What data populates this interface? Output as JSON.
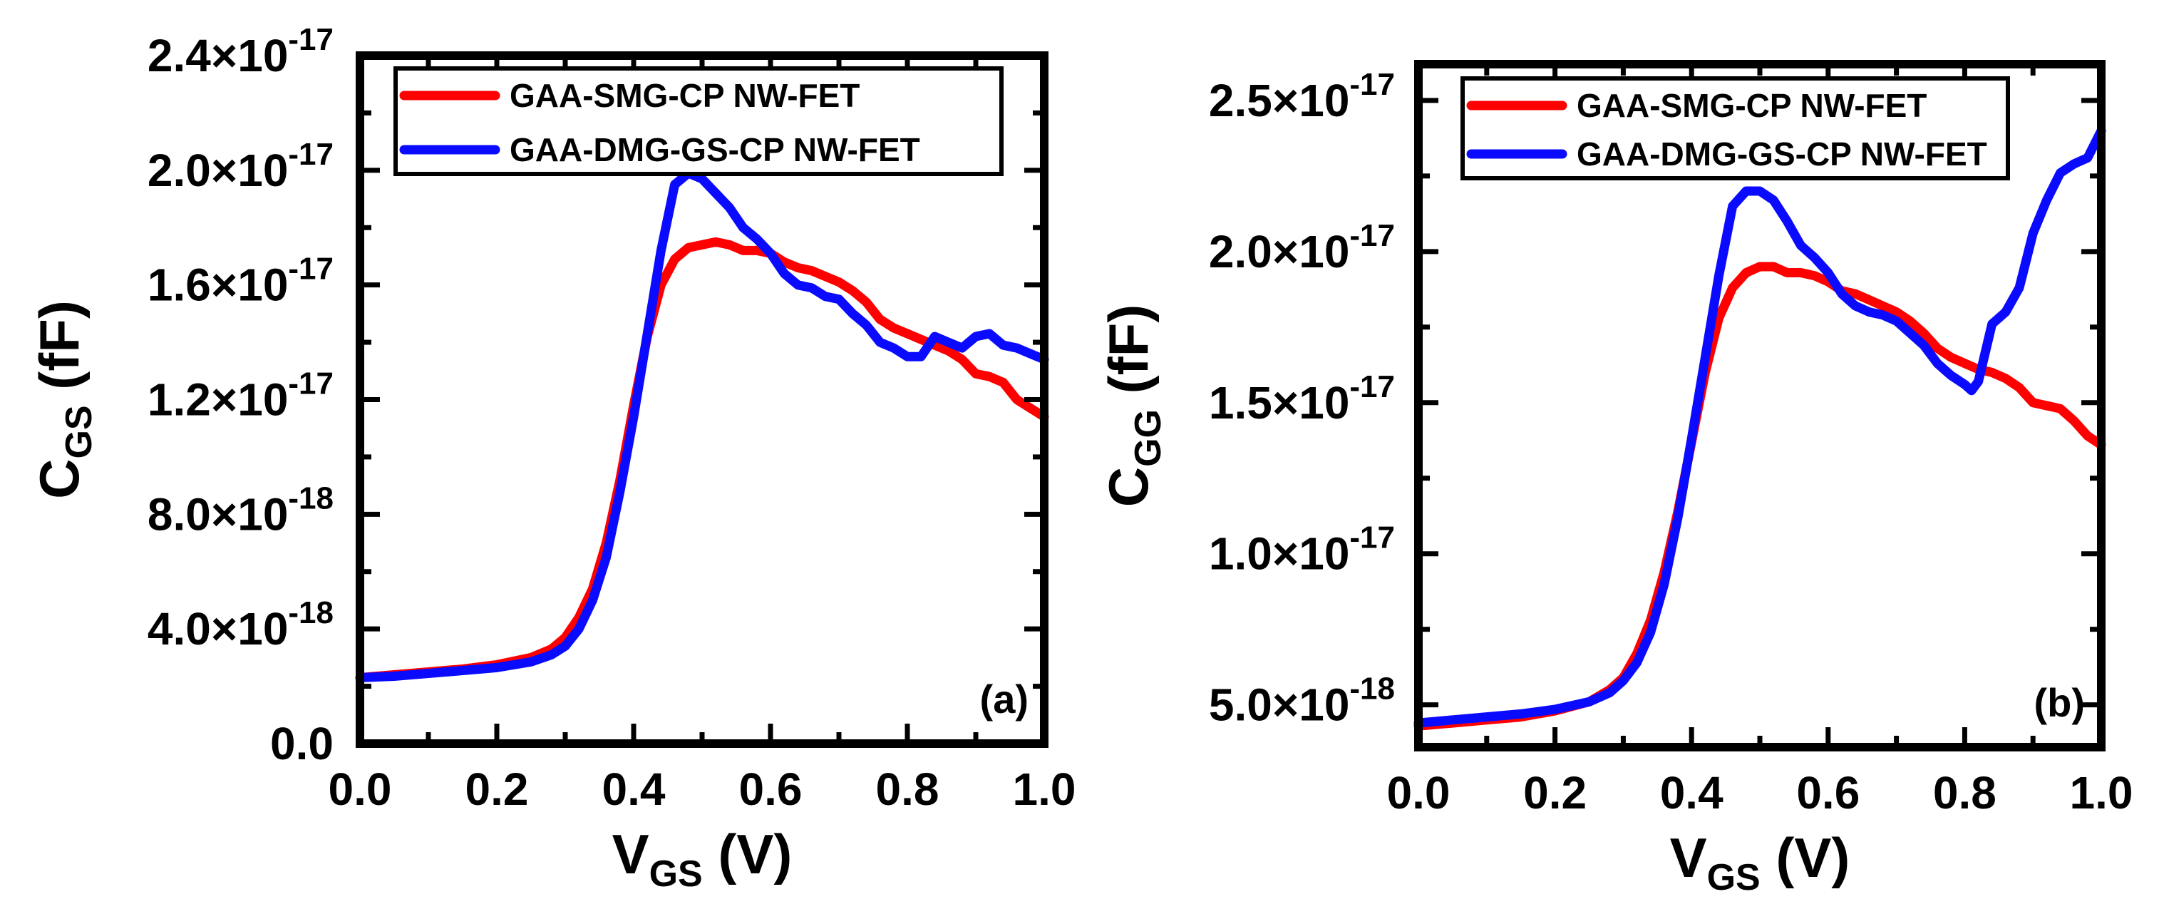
{
  "colors": {
    "smg": "#ff0000",
    "dmg": "#0a0aff",
    "frame": "#000000"
  },
  "chart_data": [
    {
      "type": "line",
      "panel_label": "(a)",
      "ylabel": {
        "main": "C",
        "sub": "GS",
        "unit": "(fF)"
      },
      "xlabel": {
        "main": "V",
        "sub": "GS",
        "unit": "(V)"
      },
      "xlim": [
        0,
        1.0
      ],
      "ylim": [
        0,
        2.4e-17
      ],
      "x_ticks": [
        0.0,
        0.2,
        0.4,
        0.6,
        0.8,
        1.0
      ],
      "x_tick_labels": [
        "0.0",
        "0.2",
        "0.4",
        "0.6",
        "0.8",
        "1.0"
      ],
      "y_ticks": [
        0,
        4e-18,
        8e-18,
        1.2e-17,
        1.6e-17,
        2e-17,
        2.4e-17
      ],
      "y_tick_labels": [
        {
          "mant": "0.0",
          "exp": ""
        },
        {
          "mant": "4.0×10",
          "exp": "-18"
        },
        {
          "mant": "8.0×10",
          "exp": "-18"
        },
        {
          "mant": "1.2×10",
          "exp": "-17"
        },
        {
          "mant": "1.6×10",
          "exp": "-17"
        },
        {
          "mant": "2.0×10",
          "exp": "-17"
        },
        {
          "mant": "2.4×10",
          "exp": "-17"
        }
      ],
      "legend": {
        "position": "top",
        "entries": [
          "GAA-SMG-CP NW-FET",
          "GAA-DMG-GS-CP NW-FET"
        ]
      },
      "series": [
        {
          "name": "GAA-SMG-CP NW-FET",
          "color_key": "smg",
          "x": [
            0,
            0.05,
            0.1,
            0.15,
            0.2,
            0.25,
            0.28,
            0.3,
            0.32,
            0.34,
            0.36,
            0.38,
            0.4,
            0.42,
            0.44,
            0.46,
            0.48,
            0.5,
            0.52,
            0.54,
            0.56,
            0.58,
            0.6,
            0.62,
            0.64,
            0.66,
            0.68,
            0.7,
            0.72,
            0.74,
            0.76,
            0.78,
            0.8,
            0.82,
            0.84,
            0.86,
            0.88,
            0.9,
            0.92,
            0.94,
            0.96,
            0.98,
            1.0
          ],
          "y": [
            2.3e-18,
            2.4e-18,
            2.5e-18,
            2.6e-18,
            2.75e-18,
            3e-18,
            3.3e-18,
            3.7e-18,
            4.4e-18,
            5.4e-18,
            7e-18,
            9.2e-18,
            1.18e-17,
            1.42e-17,
            1.6e-17,
            1.69e-17,
            1.73e-17,
            1.74e-17,
            1.75e-17,
            1.74e-17,
            1.72e-17,
            1.72e-17,
            1.71e-17,
            1.68e-17,
            1.66e-17,
            1.65e-17,
            1.63e-17,
            1.61e-17,
            1.58e-17,
            1.54e-17,
            1.48e-17,
            1.45e-17,
            1.43e-17,
            1.41e-17,
            1.39e-17,
            1.37e-17,
            1.34e-17,
            1.29e-17,
            1.28e-17,
            1.26e-17,
            1.2e-17,
            1.17e-17,
            1.14e-17
          ]
        },
        {
          "name": "GAA-DMG-GS-CP NW-FET",
          "color_key": "dmg",
          "x": [
            0,
            0.05,
            0.1,
            0.15,
            0.2,
            0.25,
            0.28,
            0.3,
            0.32,
            0.34,
            0.36,
            0.38,
            0.4,
            0.42,
            0.44,
            0.46,
            0.48,
            0.5,
            0.52,
            0.54,
            0.56,
            0.58,
            0.6,
            0.62,
            0.64,
            0.66,
            0.68,
            0.7,
            0.72,
            0.74,
            0.76,
            0.78,
            0.8,
            0.82,
            0.84,
            0.86,
            0.88,
            0.9,
            0.92,
            0.94,
            0.96,
            0.98,
            1.0
          ],
          "y": [
            2.3e-18,
            2.35e-18,
            2.45e-18,
            2.55e-18,
            2.65e-18,
            2.85e-18,
            3.1e-18,
            3.4e-18,
            4e-18,
            5e-18,
            6.5e-18,
            8.8e-18,
            1.14e-17,
            1.43e-17,
            1.72e-17,
            1.95e-17,
            1.99e-17,
            1.97e-17,
            1.92e-17,
            1.87e-17,
            1.8e-17,
            1.76e-17,
            1.71e-17,
            1.64e-17,
            1.6e-17,
            1.59e-17,
            1.56e-17,
            1.55e-17,
            1.5e-17,
            1.46e-17,
            1.4e-17,
            1.38e-17,
            1.35e-17,
            1.35e-17,
            1.42e-17,
            1.4e-17,
            1.38e-17,
            1.42e-17,
            1.43e-17,
            1.39e-17,
            1.38e-17,
            1.36e-17,
            1.34e-17
          ]
        }
      ]
    },
    {
      "type": "line",
      "panel_label": "(b)",
      "ylabel": {
        "main": "C",
        "sub": "GG",
        "unit": "(fF)"
      },
      "xlabel": {
        "main": "V",
        "sub": "GS",
        "unit": "(V)"
      },
      "xlim": [
        0,
        1.0
      ],
      "ylim": [
        3.6e-18,
        2.62e-17
      ],
      "x_ticks": [
        0.0,
        0.2,
        0.4,
        0.6,
        0.8,
        1.0
      ],
      "x_tick_labels": [
        "0.0",
        "0.2",
        "0.4",
        "0.6",
        "0.8",
        "1.0"
      ],
      "y_ticks": [
        5e-18,
        1e-17,
        1.5e-17,
        2e-17,
        2.5e-17
      ],
      "y_tick_labels": [
        {
          "mant": "5.0×10",
          "exp": "-18"
        },
        {
          "mant": "1.0×10",
          "exp": "-17"
        },
        {
          "mant": "1.5×10",
          "exp": "-17"
        },
        {
          "mant": "2.0×10",
          "exp": "-17"
        },
        {
          "mant": "2.5×10",
          "exp": "-17"
        }
      ],
      "legend": {
        "position": "top",
        "entries": [
          "GAA-SMG-CP NW-FET",
          "GAA-DMG-GS-CP NW-FET"
        ]
      },
      "series": [
        {
          "name": "GAA-SMG-CP NW-FET",
          "color_key": "smg",
          "x": [
            0,
            0.05,
            0.1,
            0.15,
            0.2,
            0.25,
            0.28,
            0.3,
            0.32,
            0.34,
            0.36,
            0.38,
            0.4,
            0.42,
            0.44,
            0.46,
            0.48,
            0.5,
            0.52,
            0.54,
            0.56,
            0.58,
            0.6,
            0.62,
            0.64,
            0.66,
            0.68,
            0.7,
            0.72,
            0.74,
            0.76,
            0.78,
            0.8,
            0.82,
            0.84,
            0.86,
            0.88,
            0.9,
            0.92,
            0.94,
            0.96,
            0.98,
            1.0
          ],
          "y": [
            4.3e-18,
            4.4e-18,
            4.5e-18,
            4.6e-18,
            4.8e-18,
            5.1e-18,
            5.5e-18,
            5.9e-18,
            6.7e-18,
            7.8e-18,
            9.4e-18,
            1.14e-17,
            1.37e-17,
            1.6e-17,
            1.78e-17,
            1.88e-17,
            1.93e-17,
            1.95e-17,
            1.95e-17,
            1.93e-17,
            1.93e-17,
            1.92e-17,
            1.9e-17,
            1.87e-17,
            1.86e-17,
            1.84e-17,
            1.82e-17,
            1.8e-17,
            1.77e-17,
            1.73e-17,
            1.68e-17,
            1.65e-17,
            1.63e-17,
            1.61e-17,
            1.6e-17,
            1.58e-17,
            1.55e-17,
            1.5e-17,
            1.49e-17,
            1.48e-17,
            1.44e-17,
            1.39e-17,
            1.36e-17
          ]
        },
        {
          "name": "GAA-DMG-GS-CP NW-FET",
          "color_key": "dmg",
          "x": [
            0,
            0.05,
            0.1,
            0.15,
            0.2,
            0.25,
            0.28,
            0.3,
            0.32,
            0.34,
            0.36,
            0.38,
            0.4,
            0.42,
            0.44,
            0.46,
            0.48,
            0.5,
            0.52,
            0.54,
            0.56,
            0.58,
            0.6,
            0.62,
            0.64,
            0.66,
            0.68,
            0.7,
            0.72,
            0.74,
            0.76,
            0.78,
            0.8,
            0.81,
            0.82,
            0.84,
            0.86,
            0.88,
            0.9,
            0.92,
            0.94,
            0.96,
            0.98,
            1.0
          ],
          "y": [
            4.4e-18,
            4.5e-18,
            4.6e-18,
            4.7e-18,
            4.85e-18,
            5.1e-18,
            5.4e-18,
            5.8e-18,
            6.4e-18,
            7.4e-18,
            9e-18,
            1.12e-17,
            1.38e-17,
            1.65e-17,
            1.92e-17,
            2.15e-17,
            2.2e-17,
            2.2e-17,
            2.17e-17,
            2.1e-17,
            2.02e-17,
            1.98e-17,
            1.93e-17,
            1.86e-17,
            1.82e-17,
            1.8e-17,
            1.79e-17,
            1.77e-17,
            1.73e-17,
            1.69e-17,
            1.63e-17,
            1.59e-17,
            1.56e-17,
            1.54e-17,
            1.57e-17,
            1.76e-17,
            1.8e-17,
            1.88e-17,
            2.06e-17,
            2.17e-17,
            2.26e-17,
            2.29e-17,
            2.31e-17,
            2.4e-17
          ]
        }
      ]
    }
  ]
}
